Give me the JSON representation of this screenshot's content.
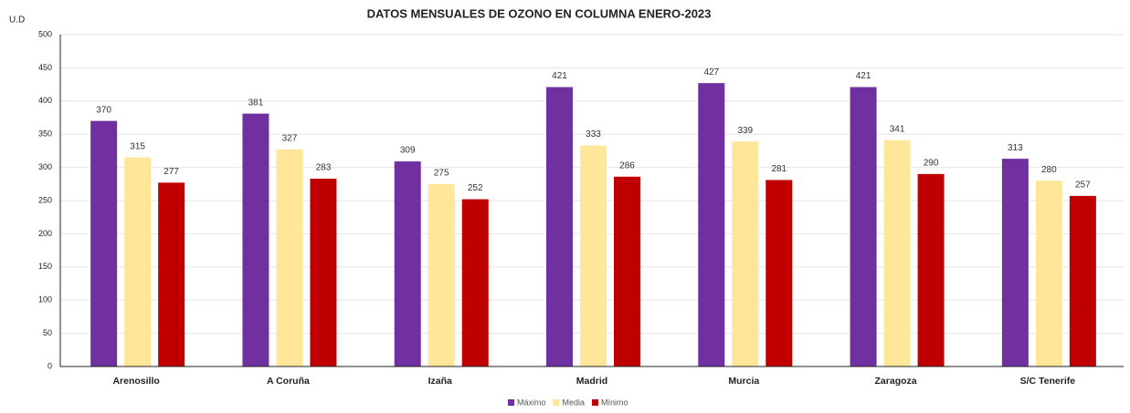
{
  "chart_data": {
    "type": "bar",
    "title": "DATOS MENSUALES DE OZONO EN COLUMNA ENERO-2023",
    "y_label": "U.D",
    "categories": [
      "Arenosillo",
      "A Coruña",
      "Izaña",
      "Madrid",
      "Murcia",
      "Zaragoza",
      "S/C Tenerife"
    ],
    "series": [
      {
        "name": "Máximo",
        "color": "#7030a0",
        "values": [
          370,
          381,
          309,
          421,
          427,
          421,
          313
        ]
      },
      {
        "name": "Media",
        "color": "#ffe699",
        "values": [
          315,
          327,
          275,
          333,
          339,
          341,
          280
        ]
      },
      {
        "name": "Mínimo",
        "color": "#c00000",
        "values": [
          277,
          283,
          252,
          286,
          281,
          290,
          257
        ]
      }
    ],
    "ylim": [
      0,
      500
    ],
    "yticks": [
      0,
      50,
      100,
      150,
      200,
      250,
      300,
      350,
      400,
      450,
      500
    ],
    "grid": true,
    "legend": "bottom"
  }
}
